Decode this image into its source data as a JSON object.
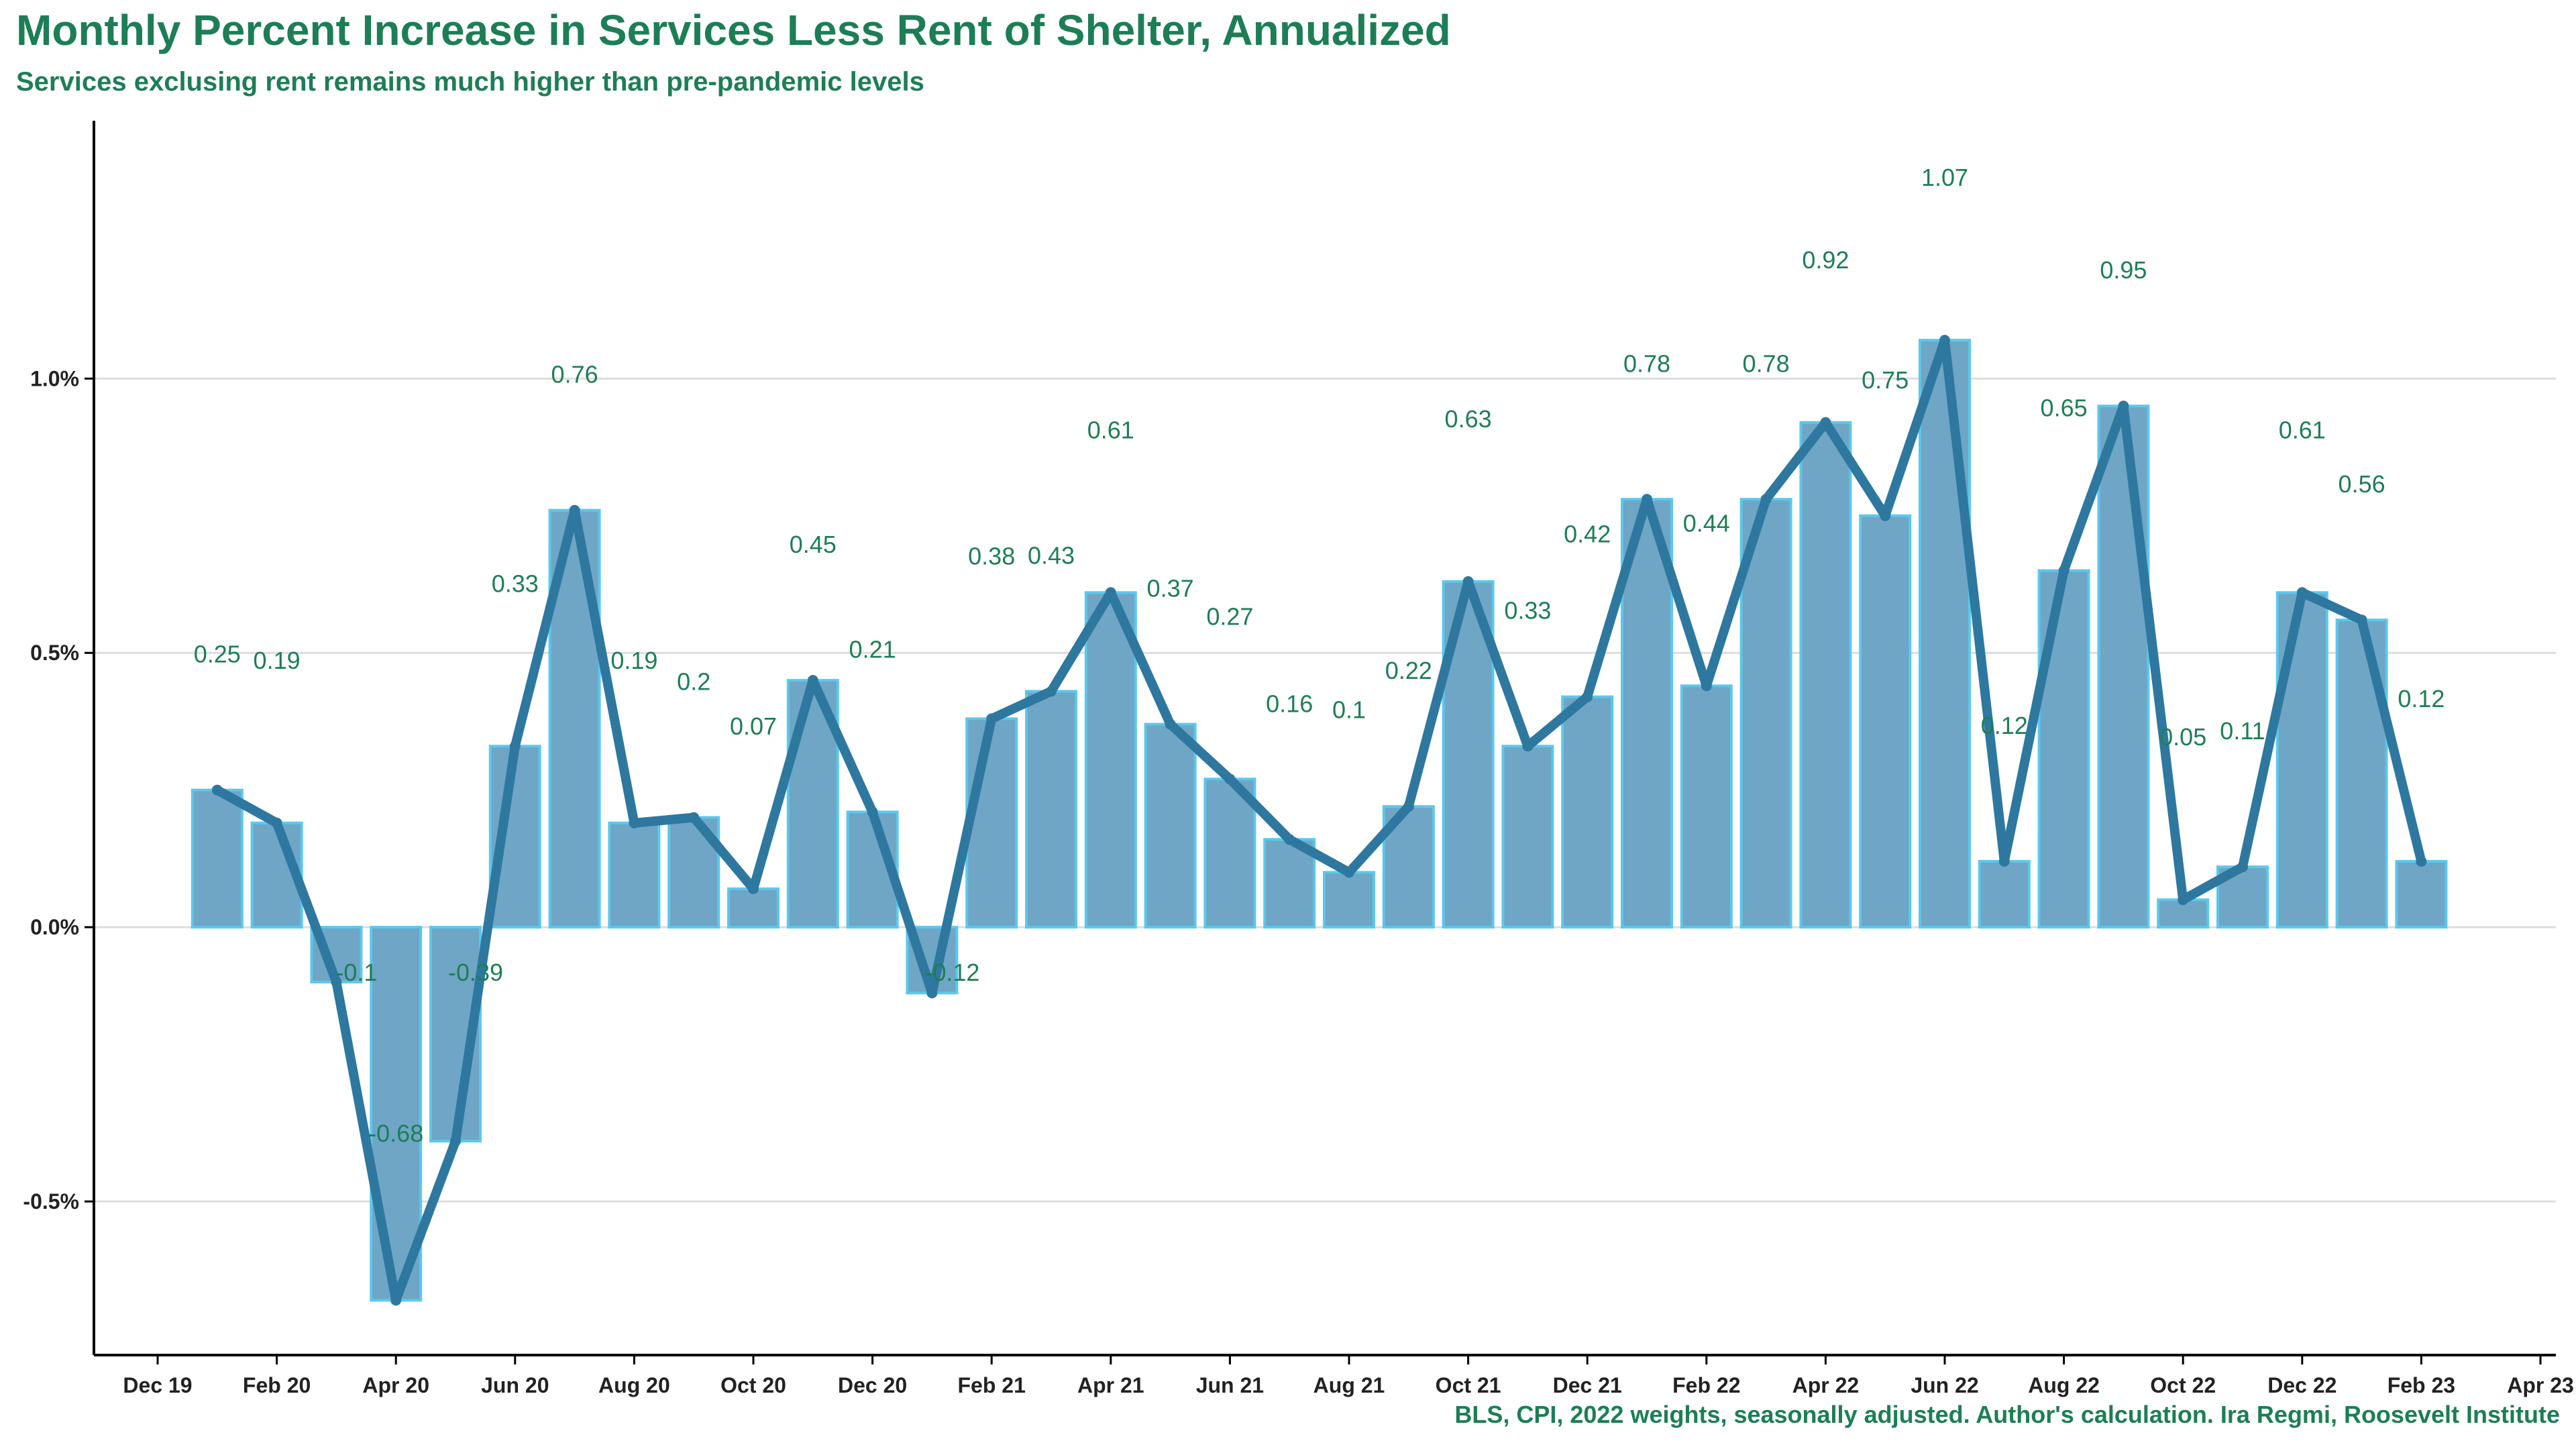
{
  "title": "Monthly Percent Increase in Services Less Rent of Shelter, Annualized",
  "subtitle": "Services exclusing rent remains much higher than pre-pandemic levels",
  "caption": "BLS, CPI, 2022 weights, seasonally adjusted. Author's calculation. Ira Regmi, Roosevelt Institute",
  "colors": {
    "title": "#1d7e55",
    "bar_fill": "#6fa5c5",
    "bar_stroke": "#5bc8ec",
    "line": "#2e78a0",
    "gridline": "#dddddd",
    "axis": "#000000",
    "label": "#1d7e55"
  },
  "chart_data": {
    "type": "bar",
    "overlay": "line",
    "title": "Monthly Percent Increase in Services Less Rent of Shelter, Annualized",
    "subtitle": "Services exclusing rent remains much higher than pre-pandemic levels",
    "xlabel": "",
    "ylabel": "",
    "categories": [
      "Jan 20",
      "Feb 20",
      "Mar 20",
      "Apr 20",
      "May 20",
      "Jun 20",
      "Jul 20",
      "Aug 20",
      "Sep 20",
      "Oct 20",
      "Nov 20",
      "Dec 20",
      "Jan 21",
      "Feb 21",
      "Mar 21",
      "Apr 21",
      "May 21",
      "Jun 21",
      "Jul 21",
      "Aug 21",
      "Sep 21",
      "Oct 21",
      "Nov 21",
      "Dec 21",
      "Jan 22",
      "Feb 22",
      "Mar 22",
      "Apr 22",
      "May 22",
      "Jun 22",
      "Jul 22",
      "Aug 22",
      "Sep 22",
      "Oct 22",
      "Nov 22",
      "Dec 22",
      "Jan 23",
      "Feb 23"
    ],
    "values": [
      0.25,
      0.19,
      -0.1,
      -0.68,
      -0.39,
      0.33,
      0.76,
      0.19,
      0.2,
      0.07,
      0.45,
      0.21,
      -0.12,
      0.38,
      0.43,
      0.61,
      0.37,
      0.27,
      0.16,
      0.1,
      0.22,
      0.63,
      0.33,
      0.42,
      0.78,
      0.44,
      0.78,
      0.92,
      0.75,
      1.07,
      0.12,
      0.65,
      0.95,
      0.05,
      0.11,
      0.61,
      0.56,
      0.12
    ],
    "x_ticks": [
      "Dec 19",
      "Feb 20",
      "Apr 20",
      "Jun 20",
      "Aug 20",
      "Oct 20",
      "Dec 20",
      "Feb 21",
      "Apr 21",
      "Jun 21",
      "Aug 21",
      "Oct 21",
      "Dec 21",
      "Feb 22",
      "Apr 22",
      "Jun 22",
      "Aug 22",
      "Oct 22",
      "Dec 22",
      "Feb 23",
      "Apr 23"
    ],
    "y_ticks": [
      "-0.5%",
      "0.0%",
      "0.5%",
      "1.0%"
    ],
    "ylim": [
      -0.78,
      1.47
    ],
    "grid": true,
    "legend": "none"
  }
}
